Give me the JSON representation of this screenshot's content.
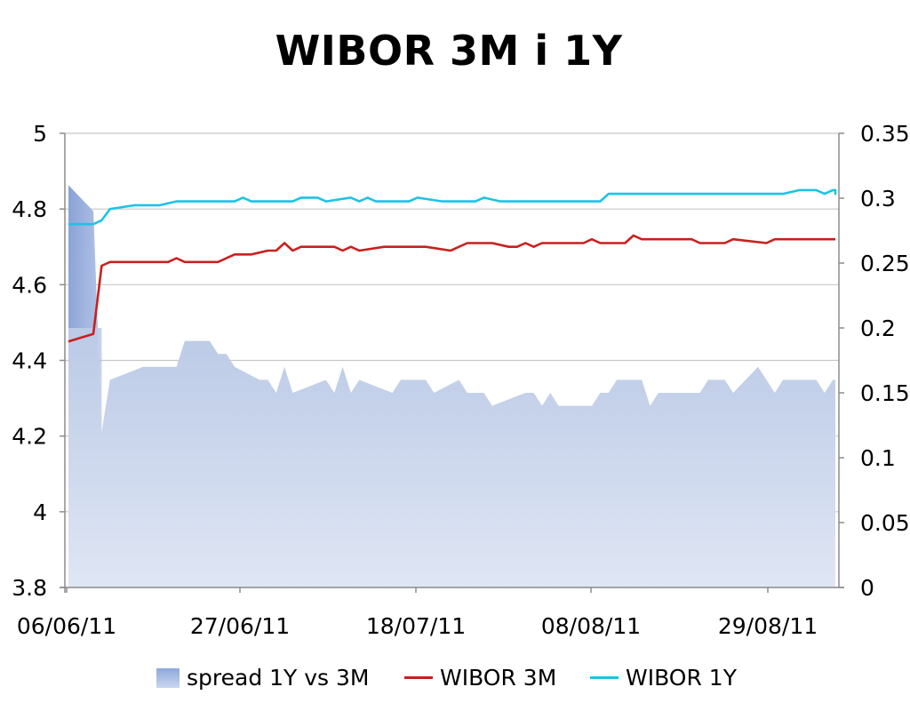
{
  "chart_data": {
    "type": "line",
    "title": "WIBOR 3M i 1Y",
    "x_tick_labels": [
      "06/06/11",
      "27/06/11",
      "18/07/11",
      "08/08/11",
      "29/08/11"
    ],
    "y_left": {
      "lim": [
        3.8,
        5
      ],
      "ticks": [
        "5",
        "4.8",
        "4.6",
        "4.4",
        "4.2",
        "4",
        "3.8"
      ]
    },
    "y_right": {
      "lim": [
        0,
        0.35
      ],
      "ticks": [
        "0.35",
        "0.3",
        "0.25",
        "0.2",
        "0.15",
        "0.1",
        "0.05",
        "0"
      ]
    },
    "x_start": "2011-06-06",
    "x_end": "2011-09-06",
    "grid": "horizontal",
    "legend_position": "bottom",
    "series": [
      {
        "name": "spread 1Y vs 3M",
        "kind": "area",
        "axis": "right",
        "color": "#aabde5",
        "points": [
          [
            "2011-06-06",
            0.31
          ],
          [
            "2011-06-09",
            0.29
          ],
          [
            "2011-06-10",
            0.12
          ],
          [
            "2011-06-11",
            0.16
          ],
          [
            "2011-06-15",
            0.17
          ],
          [
            "2011-06-16",
            0.17
          ],
          [
            "2011-06-17",
            0.17
          ],
          [
            "2011-06-19",
            0.17
          ],
          [
            "2011-06-20",
            0.19
          ],
          [
            "2011-06-22",
            0.19
          ],
          [
            "2011-06-23",
            0.19
          ],
          [
            "2011-06-24",
            0.18
          ],
          [
            "2011-06-25",
            0.18
          ],
          [
            "2011-06-26",
            0.17
          ],
          [
            "2011-06-29",
            0.16
          ],
          [
            "2011-06-30",
            0.16
          ],
          [
            "2011-07-01",
            0.15
          ],
          [
            "2011-07-02",
            0.17
          ],
          [
            "2011-07-03",
            0.15
          ],
          [
            "2011-07-05",
            0.155
          ],
          [
            "2011-07-07",
            0.16
          ],
          [
            "2011-07-08",
            0.15
          ],
          [
            "2011-07-09",
            0.17
          ],
          [
            "2011-07-10",
            0.15
          ],
          [
            "2011-07-11",
            0.16
          ],
          [
            "2011-07-13",
            0.155
          ],
          [
            "2011-07-15",
            0.15
          ],
          [
            "2011-07-16",
            0.16
          ],
          [
            "2011-07-19",
            0.16
          ],
          [
            "2011-07-20",
            0.15
          ],
          [
            "2011-07-23",
            0.16
          ],
          [
            "2011-07-24",
            0.15
          ],
          [
            "2011-07-26",
            0.15
          ],
          [
            "2011-07-27",
            0.14
          ],
          [
            "2011-07-29",
            0.145
          ],
          [
            "2011-07-31",
            0.15
          ],
          [
            "2011-08-01",
            0.15
          ],
          [
            "2011-08-02",
            0.14
          ],
          [
            "2011-08-03",
            0.15
          ],
          [
            "2011-08-04",
            0.14
          ],
          [
            "2011-08-08",
            0.14
          ],
          [
            "2011-08-09",
            0.15
          ],
          [
            "2011-08-10",
            0.15
          ],
          [
            "2011-08-11",
            0.16
          ],
          [
            "2011-08-14",
            0.16
          ],
          [
            "2011-08-15",
            0.14
          ],
          [
            "2011-08-16",
            0.15
          ],
          [
            "2011-08-21",
            0.15
          ],
          [
            "2011-08-22",
            0.16
          ],
          [
            "2011-08-24",
            0.16
          ],
          [
            "2011-08-25",
            0.15
          ],
          [
            "2011-08-28",
            0.17
          ],
          [
            "2011-08-30",
            0.15
          ],
          [
            "2011-08-31",
            0.16
          ],
          [
            "2011-09-04",
            0.16
          ],
          [
            "2011-09-05",
            0.15
          ],
          [
            "2011-09-06",
            0.16
          ],
          [
            "2011-09-13",
            0.16
          ]
        ]
      },
      {
        "name": "WIBOR 3M",
        "kind": "line",
        "axis": "left",
        "color": "#c8201e",
        "points": [
          [
            "2011-06-06",
            4.45
          ],
          [
            "2011-06-09",
            4.47
          ],
          [
            "2011-06-10",
            4.65
          ],
          [
            "2011-06-11",
            4.66
          ],
          [
            "2011-06-13",
            4.66
          ],
          [
            "2011-06-18",
            4.66
          ],
          [
            "2011-06-19",
            4.67
          ],
          [
            "2011-06-20",
            4.66
          ],
          [
            "2011-06-24",
            4.66
          ],
          [
            "2011-06-26",
            4.68
          ],
          [
            "2011-06-28",
            4.68
          ],
          [
            "2011-06-30",
            4.69
          ],
          [
            "2011-07-01",
            4.69
          ],
          [
            "2011-07-02",
            4.71
          ],
          [
            "2011-07-03",
            4.69
          ],
          [
            "2011-07-04",
            4.7
          ],
          [
            "2011-07-08",
            4.7
          ],
          [
            "2011-07-09",
            4.69
          ],
          [
            "2011-07-10",
            4.7
          ],
          [
            "2011-07-11",
            4.69
          ],
          [
            "2011-07-14",
            4.7
          ],
          [
            "2011-07-19",
            4.7
          ],
          [
            "2011-07-22",
            4.69
          ],
          [
            "2011-07-24",
            4.71
          ],
          [
            "2011-07-27",
            4.71
          ],
          [
            "2011-07-29",
            4.7
          ],
          [
            "2011-07-30",
            4.7
          ],
          [
            "2011-07-31",
            4.71
          ],
          [
            "2011-08-01",
            4.7
          ],
          [
            "2011-08-02",
            4.71
          ],
          [
            "2011-08-07",
            4.71
          ],
          [
            "2011-08-08",
            4.72
          ],
          [
            "2011-08-09",
            4.71
          ],
          [
            "2011-08-11",
            4.71
          ],
          [
            "2011-08-12",
            4.71
          ],
          [
            "2011-08-13",
            4.73
          ],
          [
            "2011-08-14",
            4.72
          ],
          [
            "2011-08-20",
            4.72
          ],
          [
            "2011-08-21",
            4.71
          ],
          [
            "2011-08-24",
            4.71
          ],
          [
            "2011-08-25",
            4.72
          ],
          [
            "2011-08-29",
            4.71
          ],
          [
            "2011-08-30",
            4.72
          ],
          [
            "2011-09-13",
            4.72
          ]
        ]
      },
      {
        "name": "WIBOR 1Y",
        "kind": "line",
        "axis": "left",
        "color": "#1cc3e8",
        "points": [
          [
            "2011-06-06",
            4.76
          ],
          [
            "2011-06-09",
            4.76
          ],
          [
            "2011-06-10",
            4.77
          ],
          [
            "2011-06-11",
            4.8
          ],
          [
            "2011-06-14",
            4.81
          ],
          [
            "2011-06-15",
            4.81
          ],
          [
            "2011-06-17",
            4.81
          ],
          [
            "2011-06-19",
            4.82
          ],
          [
            "2011-06-26",
            4.82
          ],
          [
            "2011-06-27",
            4.83
          ],
          [
            "2011-06-28",
            4.82
          ],
          [
            "2011-07-03",
            4.82
          ],
          [
            "2011-07-04",
            4.83
          ],
          [
            "2011-07-06",
            4.83
          ],
          [
            "2011-07-07",
            4.82
          ],
          [
            "2011-07-10",
            4.83
          ],
          [
            "2011-07-11",
            4.82
          ],
          [
            "2011-07-12",
            4.83
          ],
          [
            "2011-07-13",
            4.82
          ],
          [
            "2011-07-17",
            4.82
          ],
          [
            "2011-07-18",
            4.83
          ],
          [
            "2011-07-21",
            4.82
          ],
          [
            "2011-07-25",
            4.82
          ],
          [
            "2011-07-26",
            4.83
          ],
          [
            "2011-07-28",
            4.82
          ],
          [
            "2011-08-09",
            4.82
          ],
          [
            "2011-08-10",
            4.84
          ],
          [
            "2011-08-31",
            4.84
          ],
          [
            "2011-09-02",
            4.85
          ],
          [
            "2011-09-04",
            4.85
          ],
          [
            "2011-09-05",
            4.84
          ],
          [
            "2011-09-06",
            4.85
          ],
          [
            "2011-09-09",
            4.85
          ],
          [
            "2011-09-10",
            4.84
          ],
          [
            "2011-09-11",
            4.85
          ],
          [
            "2011-09-13",
            4.85
          ]
        ]
      }
    ]
  }
}
